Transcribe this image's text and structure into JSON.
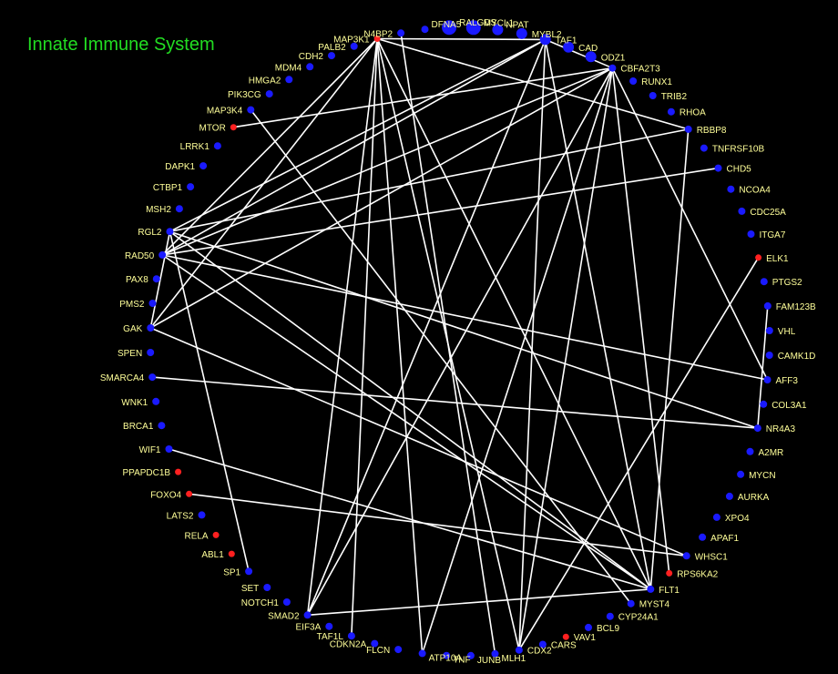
{
  "title": "Innate Immune System",
  "colors": {
    "background": "#000000",
    "title": "#22dd22",
    "label": "#ffff99",
    "edge": "#ffffff",
    "node_default": "#1a1aff",
    "node_highlight": "#ff2020"
  },
  "nodes": [
    {
      "id": "RALGDS",
      "label": "RALGDS",
      "type": "default"
    },
    {
      "id": "MYCL1",
      "label": "MYCL1",
      "type": "default"
    },
    {
      "id": "NPAT",
      "label": "NPAT",
      "type": "default"
    },
    {
      "id": "MYBL2",
      "label": "MYBL2",
      "type": "default"
    },
    {
      "id": "TAF1",
      "label": "TAF1",
      "type": "default"
    },
    {
      "id": "CAD",
      "label": "CAD",
      "type": "default"
    },
    {
      "id": "ODZ1",
      "label": "ODZ1",
      "type": "default"
    },
    {
      "id": "CBFA2T3",
      "label": "CBFA2T3",
      "type": "default"
    },
    {
      "id": "RUNX1",
      "label": "RUNX1",
      "type": "default"
    },
    {
      "id": "TRIB2",
      "label": "TRIB2",
      "type": "default"
    },
    {
      "id": "RHOA",
      "label": "RHOA",
      "type": "default"
    },
    {
      "id": "RBBP8",
      "label": "RBBP8",
      "type": "default"
    },
    {
      "id": "TNFRSF10B",
      "label": "TNFRSF10B",
      "type": "default"
    },
    {
      "id": "CHD5",
      "label": "CHD5",
      "type": "default"
    },
    {
      "id": "NCOA4",
      "label": "NCOA4",
      "type": "default"
    },
    {
      "id": "CDC25A",
      "label": "CDC25A",
      "type": "default"
    },
    {
      "id": "ITGA7",
      "label": "ITGA7",
      "type": "default"
    },
    {
      "id": "ELK1",
      "label": "ELK1",
      "type": "highlight"
    },
    {
      "id": "PTGS2",
      "label": "PTGS2",
      "type": "default"
    },
    {
      "id": "FAM123B",
      "label": "FAM123B",
      "type": "default"
    },
    {
      "id": "VHL",
      "label": "VHL",
      "type": "default"
    },
    {
      "id": "CAMK1D",
      "label": "CAMK1D",
      "type": "default"
    },
    {
      "id": "AFF3",
      "label": "AFF3",
      "type": "default"
    },
    {
      "id": "COL3A1",
      "label": "COL3A1",
      "type": "default"
    },
    {
      "id": "NR4A3",
      "label": "NR4A3",
      "type": "default"
    },
    {
      "id": "A2MR",
      "label": "A2MR",
      "type": "default"
    },
    {
      "id": "MYCN",
      "label": "MYCN",
      "type": "default"
    },
    {
      "id": "AURKA",
      "label": "AURKA",
      "type": "default"
    },
    {
      "id": "XPO4",
      "label": "XPO4",
      "type": "default"
    },
    {
      "id": "APAF1",
      "label": "APAF1",
      "type": "default"
    },
    {
      "id": "WHSC1",
      "label": "WHSC1",
      "type": "default"
    },
    {
      "id": "RPS6KA2",
      "label": "RPS6KA2",
      "type": "highlight"
    },
    {
      "id": "FLT1",
      "label": "FLT1",
      "type": "default"
    },
    {
      "id": "MYST4",
      "label": "MYST4",
      "type": "default"
    },
    {
      "id": "CYP24A1",
      "label": "CYP24A1",
      "type": "default"
    },
    {
      "id": "BCL9",
      "label": "BCL9",
      "type": "default"
    },
    {
      "id": "VAV1",
      "label": "VAV1",
      "type": "highlight"
    },
    {
      "id": "CARS",
      "label": "CARS",
      "type": "default"
    },
    {
      "id": "CDX2",
      "label": "CDX2",
      "type": "default"
    },
    {
      "id": "MLH1",
      "label": "MLH1",
      "type": "default"
    },
    {
      "id": "JUNB",
      "label": "JUNB",
      "type": "default"
    },
    {
      "id": "TNF",
      "label": "TNF",
      "type": "default"
    },
    {
      "id": "ATP10A",
      "label": "ATP10A",
      "type": "default"
    },
    {
      "id": "FLCN",
      "label": "FLCN",
      "type": "default"
    },
    {
      "id": "CDKN2A",
      "label": "CDKN2A",
      "type": "default"
    },
    {
      "id": "TAF1L",
      "label": "TAF1L",
      "type": "default"
    },
    {
      "id": "EIF3A",
      "label": "EIF3A",
      "type": "default"
    },
    {
      "id": "SMAD2",
      "label": "SMAD2",
      "type": "default"
    },
    {
      "id": "NOTCH1",
      "label": "NOTCH1",
      "type": "default"
    },
    {
      "id": "SET",
      "label": "SET",
      "type": "default"
    },
    {
      "id": "SP1",
      "label": "SP1",
      "type": "default"
    },
    {
      "id": "ABL1",
      "label": "ABL1",
      "type": "highlight"
    },
    {
      "id": "RELA",
      "label": "RELA",
      "type": "highlight"
    },
    {
      "id": "LATS2",
      "label": "LATS2",
      "type": "default"
    },
    {
      "id": "FOXO4",
      "label": "FOXO4",
      "type": "highlight"
    },
    {
      "id": "PPAPDC1B",
      "label": "PPAPDC1B",
      "type": "highlight"
    },
    {
      "id": "WIF1",
      "label": "WIF1",
      "type": "default"
    },
    {
      "id": "BRCA1",
      "label": "BRCA1",
      "type": "default"
    },
    {
      "id": "WNK1",
      "label": "WNK1",
      "type": "default"
    },
    {
      "id": "SMARCA4",
      "label": "SMARCA4",
      "type": "default"
    },
    {
      "id": "SPEN",
      "label": "SPEN",
      "type": "default"
    },
    {
      "id": "GAK",
      "label": "GAK",
      "type": "default"
    },
    {
      "id": "PMS2",
      "label": "PMS2",
      "type": "default"
    },
    {
      "id": "PAX8",
      "label": "PAX8",
      "type": "default"
    },
    {
      "id": "RAD50",
      "label": "RAD50",
      "type": "default"
    },
    {
      "id": "RGL2",
      "label": "RGL2",
      "type": "default"
    },
    {
      "id": "MSH2",
      "label": "MSH2",
      "type": "default"
    },
    {
      "id": "CTBP1",
      "label": "CTBP1",
      "type": "default"
    },
    {
      "id": "DAPK1",
      "label": "DAPK1",
      "type": "default"
    },
    {
      "id": "LRRK1",
      "label": "LRRK1",
      "type": "default"
    },
    {
      "id": "MTOR",
      "label": "MTOR",
      "type": "highlight"
    },
    {
      "id": "MAP3K4",
      "label": "MAP3K4",
      "type": "default"
    },
    {
      "id": "PIK3CG",
      "label": "PIK3CG",
      "type": "default"
    },
    {
      "id": "HMGA2",
      "label": "HMGA2",
      "type": "default"
    },
    {
      "id": "MDM4",
      "label": "MDM4",
      "type": "default"
    },
    {
      "id": "CDH2",
      "label": "CDH2",
      "type": "default"
    },
    {
      "id": "PALB2",
      "label": "PALB2",
      "type": "default"
    },
    {
      "id": "MAP3K1",
      "label": "MAP3K1",
      "type": "highlight"
    },
    {
      "id": "N4BP2",
      "label": "N4BP2",
      "type": "default"
    },
    {
      "id": "DFNA5",
      "label": "DFNA5",
      "type": "default"
    }
  ],
  "edges": [
    [
      "MAP3K1",
      "RAD50"
    ],
    [
      "MAP3K1",
      "GAK"
    ],
    [
      "MAP3K1",
      "SMAD2"
    ],
    [
      "MAP3K1",
      "FLT1"
    ],
    [
      "MAP3K1",
      "CDX2"
    ],
    [
      "MAP3K1",
      "TAF1L"
    ],
    [
      "MAP3K1",
      "ATP10A"
    ],
    [
      "MAP3K1",
      "TAF1"
    ],
    [
      "MAP3K1",
      "RBBP8"
    ],
    [
      "MAP3K4",
      "MYST4"
    ],
    [
      "MTOR",
      "CBFA2T3"
    ],
    [
      "TAF1",
      "RGL2"
    ],
    [
      "TAF1",
      "RAD50"
    ],
    [
      "TAF1",
      "SMAD2"
    ],
    [
      "TAF1",
      "CBFA2T3"
    ],
    [
      "CBFA2T3",
      "GAK"
    ],
    [
      "CBFA2T3",
      "RAD50"
    ],
    [
      "CBFA2T3",
      "SMAD2"
    ],
    [
      "CBFA2T3",
      "ATP10A"
    ],
    [
      "CBFA2T3",
      "CDX2"
    ],
    [
      "CBFA2T3",
      "RPS6KA2"
    ],
    [
      "RBBP8",
      "RGL2"
    ],
    [
      "RBBP8",
      "FLT1"
    ],
    [
      "CHD5",
      "RAD50"
    ],
    [
      "RGL2",
      "SP1"
    ],
    [
      "RGL2",
      "NR4A3"
    ],
    [
      "RGL2",
      "FLT1"
    ],
    [
      "RAD50",
      "AFF3"
    ],
    [
      "RAD50",
      "FLT1"
    ],
    [
      "RGL2",
      "GAK"
    ],
    [
      "GAK",
      "WHSC1"
    ],
    [
      "SMARCA4",
      "NR4A3"
    ],
    [
      "WIF1",
      "FLT1"
    ],
    [
      "FOXO4",
      "WHSC1"
    ],
    [
      "ELK1",
      "CDX2"
    ],
    [
      "FAM123B",
      "NR4A3"
    ],
    [
      "AFF3",
      "CBFA2T3"
    ],
    [
      "CDX2",
      "TAF1"
    ],
    [
      "FLT1",
      "TAF1"
    ],
    [
      "MLH1",
      "N4BP2"
    ],
    [
      "SMAD2",
      "FLT1"
    ]
  ]
}
